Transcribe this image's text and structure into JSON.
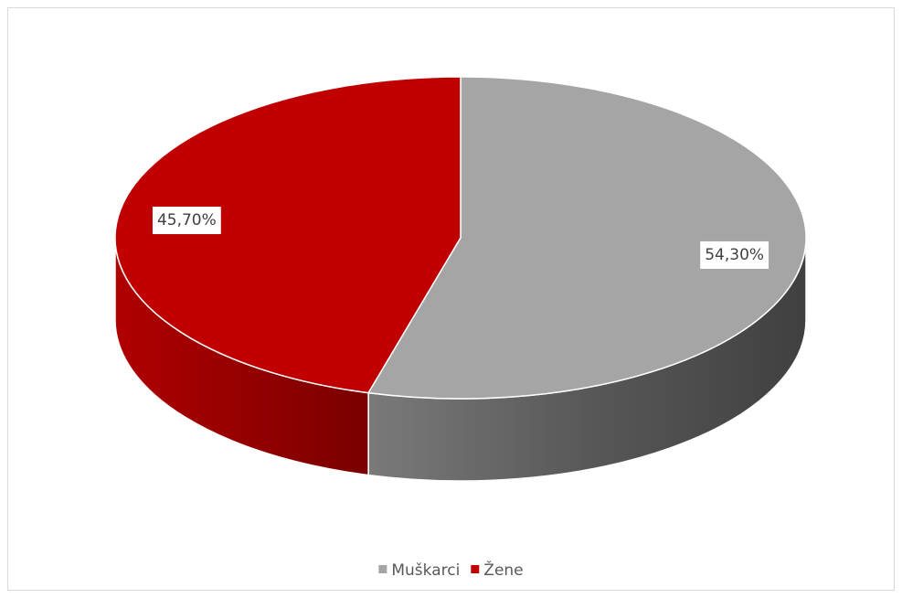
{
  "chart_data": {
    "type": "pie",
    "three_d": true,
    "categories": [
      "Muškarci",
      "Žene"
    ],
    "values": [
      54.3,
      45.7
    ],
    "value_labels": [
      "54,30%",
      "45,70%"
    ],
    "colors": [
      "#a5a5a5",
      "#c00000"
    ],
    "legend": "bottom"
  }
}
